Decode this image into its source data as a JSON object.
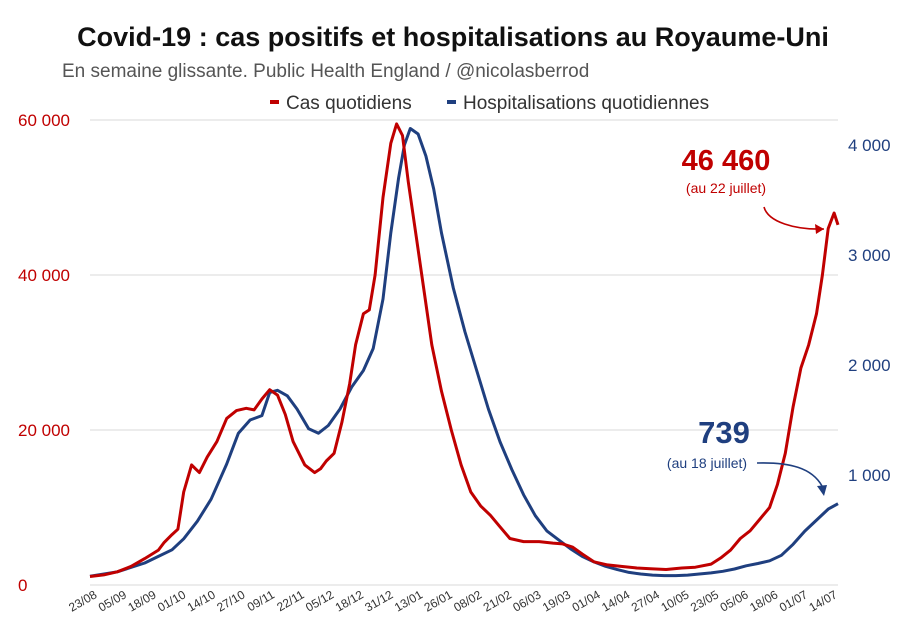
{
  "colors": {
    "cases": "#c00000",
    "hospitalisations": "#1f3f7f",
    "grid": "#d9d9d9"
  },
  "chart_data": {
    "type": "line",
    "title": "Covid-19 : cas positifs et hospitalisations au Royaume-Uni",
    "subtitle": "En semaine glissante. Public Health England / @nicolasberrod",
    "legend_position": "top-center",
    "x_tick_labels": [
      "23/08",
      "05/09",
      "18/09",
      "01/10",
      "14/10",
      "27/10",
      "09/11",
      "22/11",
      "05/12",
      "18/12",
      "31/12",
      "13/01",
      "26/01",
      "08/02",
      "21/02",
      "06/03",
      "19/03",
      "01/04",
      "14/04",
      "27/04",
      "10/05",
      "23/05",
      "05/06",
      "18/06",
      "01/07",
      "14/07"
    ],
    "left_axis": {
      "label": "Cas quotidiens",
      "ylim": [
        0,
        60000
      ],
      "ticks": [
        0,
        20000,
        40000,
        60000
      ],
      "tick_labels": [
        "0",
        "20 000",
        "40 000",
        "60 000"
      ]
    },
    "right_axis": {
      "label": "Hospitalisations quotidiennes",
      "ylim": [
        0,
        4200
      ],
      "ticks": [
        1000,
        2000,
        3000,
        4000
      ],
      "tick_labels": [
        "1 000",
        "2 000",
        "3 000",
        "4 000"
      ]
    },
    "series": [
      {
        "name": "Cas quotidiens",
        "axis": "left",
        "color": "#c00000",
        "points": [
          [
            0,
            1100
          ],
          [
            7,
            1300
          ],
          [
            14,
            1700
          ],
          [
            21,
            2400
          ],
          [
            28,
            3400
          ],
          [
            35,
            4500
          ],
          [
            38,
            5500
          ],
          [
            42,
            6500
          ],
          [
            45,
            7200
          ],
          [
            48,
            12000
          ],
          [
            52,
            15500
          ],
          [
            54,
            15000
          ],
          [
            56,
            14500
          ],
          [
            60,
            16500
          ],
          [
            65,
            18500
          ],
          [
            70,
            21500
          ],
          [
            75,
            22500
          ],
          [
            80,
            22800
          ],
          [
            84,
            22600
          ],
          [
            88,
            24000
          ],
          [
            92,
            25200
          ],
          [
            96,
            24500
          ],
          [
            100,
            22000
          ],
          [
            104,
            18500
          ],
          [
            110,
            15500
          ],
          [
            115,
            14500
          ],
          [
            118,
            15000
          ],
          [
            121,
            16000
          ],
          [
            125,
            17000
          ],
          [
            129,
            21000
          ],
          [
            133,
            26000
          ],
          [
            136,
            31000
          ],
          [
            140,
            35000
          ],
          [
            143,
            35500
          ],
          [
            146,
            40000
          ],
          [
            150,
            50000
          ],
          [
            154,
            57000
          ],
          [
            157,
            59500
          ],
          [
            160,
            58000
          ],
          [
            163,
            52000
          ],
          [
            167,
            45000
          ],
          [
            171,
            38000
          ],
          [
            175,
            31000
          ],
          [
            180,
            25000
          ],
          [
            185,
            20000
          ],
          [
            190,
            15500
          ],
          [
            195,
            12000
          ],
          [
            200,
            10200
          ],
          [
            205,
            9000
          ],
          [
            210,
            7500
          ],
          [
            215,
            6000
          ],
          [
            222,
            5600
          ],
          [
            230,
            5600
          ],
          [
            237,
            5400
          ],
          [
            242,
            5300
          ],
          [
            247,
            4900
          ],
          [
            252,
            4000
          ],
          [
            258,
            3000
          ],
          [
            265,
            2600
          ],
          [
            272,
            2400
          ],
          [
            280,
            2200
          ],
          [
            287,
            2100
          ],
          [
            295,
            2000
          ],
          [
            303,
            2200
          ],
          [
            310,
            2300
          ],
          [
            318,
            2700
          ],
          [
            323,
            3500
          ],
          [
            328,
            4500
          ],
          [
            333,
            6000
          ],
          [
            338,
            7000
          ],
          [
            343,
            8500
          ],
          [
            348,
            10000
          ],
          [
            352,
            13000
          ],
          [
            356,
            17000
          ],
          [
            360,
            23000
          ],
          [
            364,
            28000
          ],
          [
            368,
            31000
          ],
          [
            372,
            35000
          ],
          [
            375,
            40000
          ],
          [
            378,
            46000
          ],
          [
            381,
            48000
          ],
          [
            383,
            46460
          ]
        ]
      },
      {
        "name": "Hospitalisations quotidiennes",
        "axis": "right",
        "color": "#1f3f7f",
        "points": [
          [
            0,
            80
          ],
          [
            14,
            120
          ],
          [
            28,
            200
          ],
          [
            35,
            260
          ],
          [
            42,
            320
          ],
          [
            48,
            420
          ],
          [
            55,
            580
          ],
          [
            62,
            780
          ],
          [
            70,
            1100
          ],
          [
            76,
            1380
          ],
          [
            82,
            1500
          ],
          [
            88,
            1540
          ],
          [
            92,
            1750
          ],
          [
            96,
            1770
          ],
          [
            101,
            1720
          ],
          [
            106,
            1600
          ],
          [
            112,
            1420
          ],
          [
            117,
            1380
          ],
          [
            122,
            1450
          ],
          [
            128,
            1600
          ],
          [
            134,
            1800
          ],
          [
            140,
            1950
          ],
          [
            145,
            2150
          ],
          [
            150,
            2600
          ],
          [
            154,
            3200
          ],
          [
            158,
            3700
          ],
          [
            161,
            4000
          ],
          [
            164,
            4150
          ],
          [
            168,
            4100
          ],
          [
            172,
            3900
          ],
          [
            176,
            3600
          ],
          [
            180,
            3200
          ],
          [
            186,
            2700
          ],
          [
            192,
            2300
          ],
          [
            198,
            1950
          ],
          [
            204,
            1600
          ],
          [
            210,
            1300
          ],
          [
            216,
            1050
          ],
          [
            222,
            820
          ],
          [
            228,
            630
          ],
          [
            234,
            490
          ],
          [
            240,
            410
          ],
          [
            246,
            330
          ],
          [
            252,
            260
          ],
          [
            258,
            210
          ],
          [
            264,
            170
          ],
          [
            270,
            140
          ],
          [
            276,
            115
          ],
          [
            282,
            100
          ],
          [
            288,
            90
          ],
          [
            294,
            85
          ],
          [
            300,
            85
          ],
          [
            306,
            90
          ],
          [
            312,
            100
          ],
          [
            318,
            110
          ],
          [
            324,
            125
          ],
          [
            330,
            145
          ],
          [
            336,
            175
          ],
          [
            342,
            195
          ],
          [
            348,
            220
          ],
          [
            354,
            270
          ],
          [
            360,
            370
          ],
          [
            366,
            490
          ],
          [
            372,
            590
          ],
          [
            378,
            690
          ],
          [
            383,
            739
          ]
        ]
      }
    ],
    "annotations": [
      {
        "series": "Cas quotidiens",
        "value": "46 460",
        "note": "(au 22 juillet)"
      },
      {
        "series": "Hospitalisations quotidiennes",
        "value": "739",
        "note": "(au 18 juillet)"
      }
    ]
  }
}
